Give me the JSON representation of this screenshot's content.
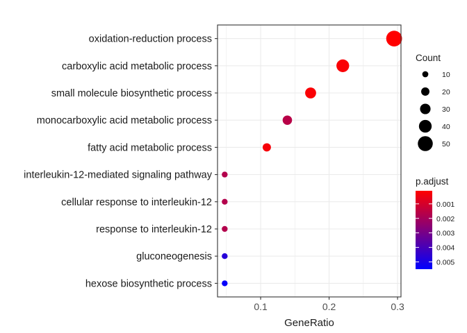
{
  "chart_data": {
    "type": "scatter",
    "title": "",
    "xlabel": "GeneRatio",
    "ylabel": "",
    "xlim": [
      0.037,
      0.305
    ],
    "grid": true,
    "x_ticks": [
      {
        "value": 0.1,
        "label": "0.1"
      },
      {
        "value": 0.2,
        "label": "0.2"
      },
      {
        "value": 0.3,
        "label": "0.3"
      }
    ],
    "categories": [
      "oxidation-reduction process",
      "carboxylic acid metabolic process",
      "small molecule biosynthetic process",
      "monocarboxylic acid metabolic process",
      "fatty acid metabolic process",
      "interleukin-12-mediated signaling pathway",
      "cellular response to interleukin-12",
      "response to interleukin-12",
      "gluconeogenesis",
      "hexose biosynthetic process"
    ],
    "points": [
      {
        "term": "oxidation-reduction process",
        "gene_ratio": 0.295,
        "count": 54,
        "p_adjust": 0.0001
      },
      {
        "term": "carboxylic acid metabolic process",
        "gene_ratio": 0.22,
        "count": 40,
        "p_adjust": 0.0002
      },
      {
        "term": "small molecule biosynthetic process",
        "gene_ratio": 0.173,
        "count": 32,
        "p_adjust": 0.0002
      },
      {
        "term": "monocarboxylic acid metabolic process",
        "gene_ratio": 0.139,
        "count": 25,
        "p_adjust": 0.0016
      },
      {
        "term": "fatty acid metabolic process",
        "gene_ratio": 0.109,
        "count": 20,
        "p_adjust": 0.0003
      },
      {
        "term": "interleukin-12-mediated signaling pathway",
        "gene_ratio": 0.0475,
        "count": 9,
        "p_adjust": 0.0017
      },
      {
        "term": "cellular response to interleukin-12",
        "gene_ratio": 0.0475,
        "count": 9,
        "p_adjust": 0.0017
      },
      {
        "term": "response to interleukin-12",
        "gene_ratio": 0.0475,
        "count": 9,
        "p_adjust": 0.0017
      },
      {
        "term": "gluconeogenesis",
        "gene_ratio": 0.0475,
        "count": 9,
        "p_adjust": 0.0047
      },
      {
        "term": "hexose biosynthetic process",
        "gene_ratio": 0.0475,
        "count": 9,
        "p_adjust": 0.0054
      }
    ],
    "size_legend": {
      "title": "Count",
      "breaks": [
        10,
        20,
        30,
        40,
        50
      ],
      "labels": [
        "10",
        "20",
        "30",
        "40",
        "50"
      ]
    },
    "color_legend": {
      "title": "p.adjust",
      "range": [
        0.0001,
        0.0055
      ],
      "low_color": "#ff0000",
      "high_color": "#0000ff",
      "ticks": [
        {
          "value": 0.001,
          "label": "0.001"
        },
        {
          "value": 0.002,
          "label": "0.002"
        },
        {
          "value": 0.003,
          "label": "0.003"
        },
        {
          "value": 0.004,
          "label": "0.004"
        },
        {
          "value": 0.005,
          "label": "0.005"
        }
      ]
    },
    "panel_background": "#ffffff",
    "grid_color": "#ebebeb",
    "border_color": "#333333"
  }
}
